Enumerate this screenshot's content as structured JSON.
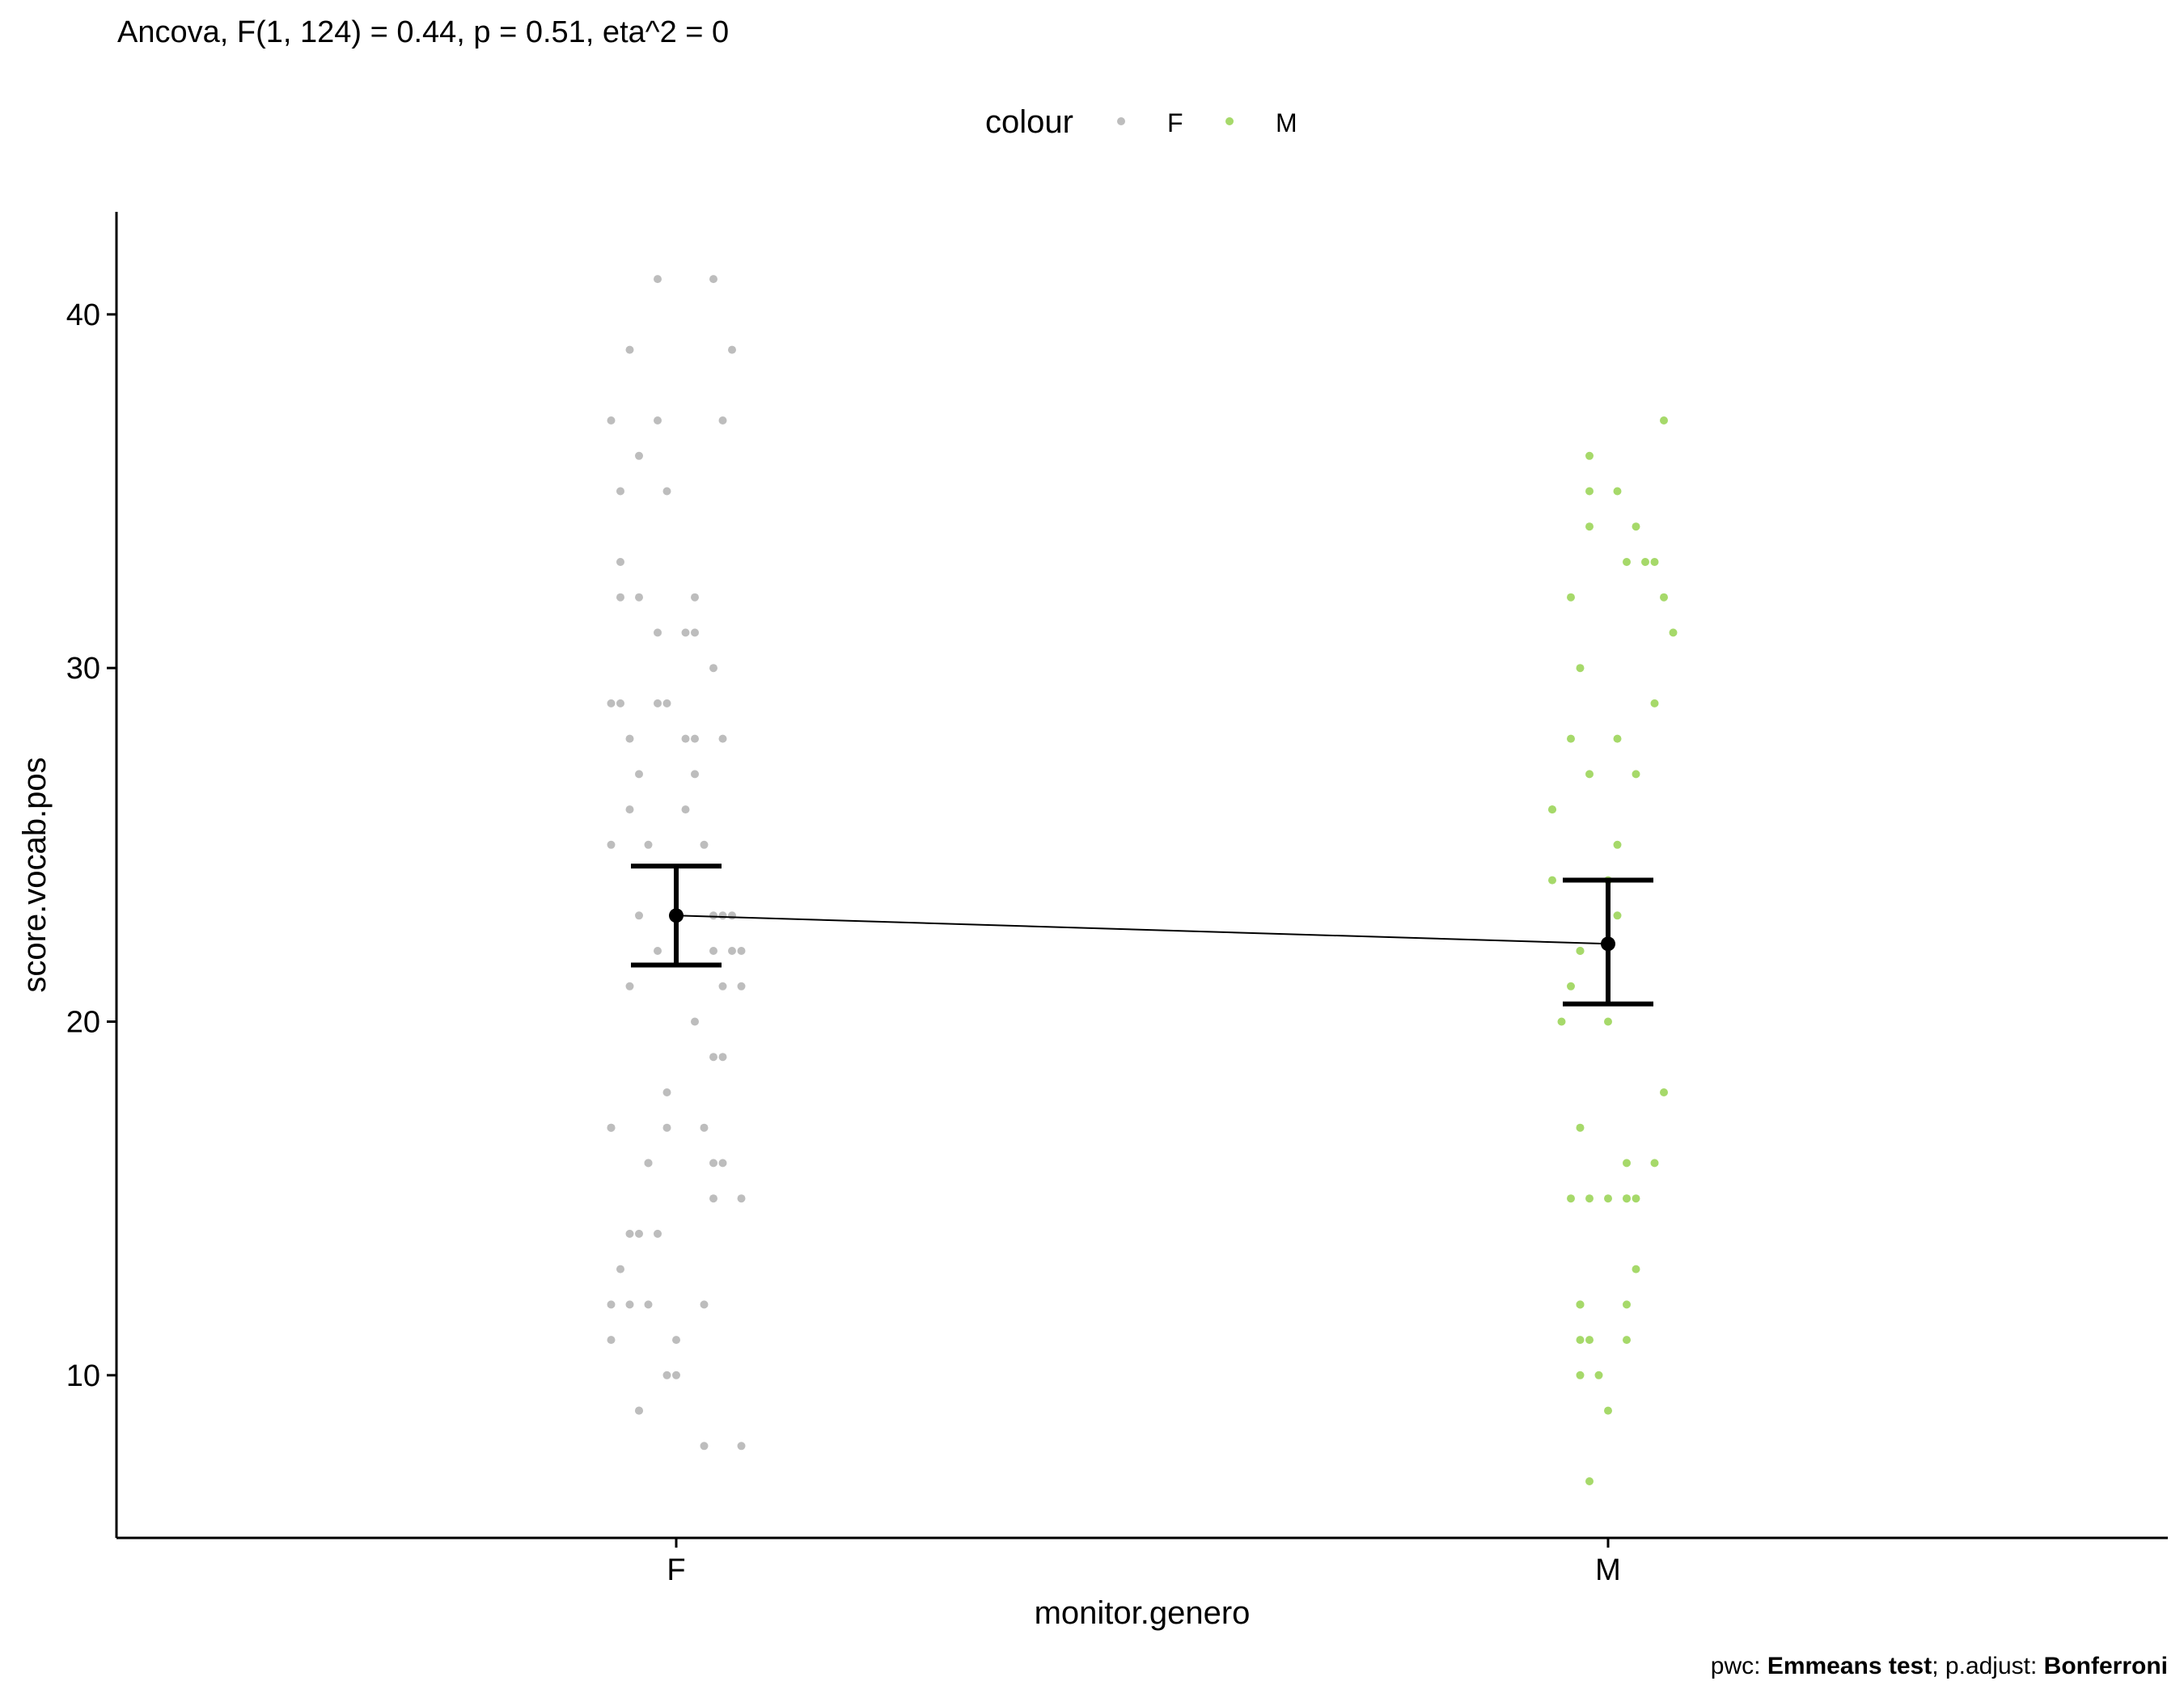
{
  "chart_data": {
    "type": "scatter",
    "title": "Ancova, F(1, 124) = 0.44, p = 0.51, eta^2 = 0",
    "caption_parts": [
      {
        "text": "pwc: ",
        "bold": false
      },
      {
        "text": "Emmeans test",
        "bold": true
      },
      {
        "text": "; p.adjust: ",
        "bold": false
      },
      {
        "text": "Bonferroni",
        "bold": true
      }
    ],
    "xlabel": "monitor.genero",
    "ylabel": "score.vocab.pos",
    "categories": [
      "F",
      "M"
    ],
    "ylim": [
      5.4,
      42.9
    ],
    "yticks": [
      10,
      20,
      30,
      40
    ],
    "grid": false,
    "legend": {
      "title": "colour",
      "position": "top",
      "entries": [
        {
          "label": "F",
          "color": "#BDBDBD"
        },
        {
          "label": "M",
          "color": "#A6D96A"
        }
      ]
    },
    "series": [
      {
        "name": "F",
        "color": "#BDBDBD",
        "points": [
          [
            -0.02,
            41
          ],
          [
            0.04,
            41
          ],
          [
            -0.05,
            39
          ],
          [
            0.06,
            39
          ],
          [
            -0.07,
            37
          ],
          [
            -0.02,
            37
          ],
          [
            0.05,
            37
          ],
          [
            -0.04,
            36
          ],
          [
            -0.06,
            35
          ],
          [
            -0.01,
            35
          ],
          [
            -0.06,
            33
          ],
          [
            -0.06,
            32
          ],
          [
            -0.04,
            32
          ],
          [
            0.02,
            32
          ],
          [
            -0.02,
            31
          ],
          [
            0.01,
            31
          ],
          [
            0.02,
            31
          ],
          [
            0.04,
            30
          ],
          [
            -0.07,
            29
          ],
          [
            -0.06,
            29
          ],
          [
            -0.02,
            29
          ],
          [
            -0.01,
            29
          ],
          [
            -0.05,
            28
          ],
          [
            0.01,
            28
          ],
          [
            0.02,
            28
          ],
          [
            0.05,
            28
          ],
          [
            -0.04,
            27
          ],
          [
            0.02,
            27
          ],
          [
            -0.05,
            26
          ],
          [
            0.01,
            26
          ],
          [
            -0.07,
            25
          ],
          [
            -0.03,
            25
          ],
          [
            0.03,
            25
          ],
          [
            -0.04,
            23
          ],
          [
            0.04,
            23
          ],
          [
            0.05,
            23
          ],
          [
            0.06,
            23
          ],
          [
            -0.02,
            22
          ],
          [
            0.04,
            22
          ],
          [
            0.06,
            22
          ],
          [
            0.07,
            22
          ],
          [
            -0.05,
            21
          ],
          [
            0.05,
            21
          ],
          [
            0.07,
            21
          ],
          [
            0.02,
            20
          ],
          [
            0.04,
            19
          ],
          [
            0.05,
            19
          ],
          [
            -0.01,
            18
          ],
          [
            -0.07,
            17
          ],
          [
            -0.07,
            17
          ],
          [
            -0.01,
            17
          ],
          [
            0.03,
            17
          ],
          [
            -0.03,
            16
          ],
          [
            -0.03,
            16
          ],
          [
            0.04,
            16
          ],
          [
            0.05,
            16
          ],
          [
            0.04,
            15
          ],
          [
            0.07,
            15
          ],
          [
            -0.05,
            14
          ],
          [
            -0.04,
            14
          ],
          [
            -0.02,
            14
          ],
          [
            -0.06,
            13
          ],
          [
            -0.07,
            12
          ],
          [
            -0.05,
            12
          ],
          [
            -0.03,
            12
          ],
          [
            0.03,
            12
          ],
          [
            0.0,
            11
          ],
          [
            -0.07,
            11
          ],
          [
            -0.01,
            10
          ],
          [
            0.0,
            10
          ],
          [
            -0.04,
            9
          ],
          [
            -0.04,
            9
          ],
          [
            0.03,
            8
          ],
          [
            0.07,
            8
          ]
        ],
        "mean": 23.0,
        "ci": [
          21.6,
          24.4
        ]
      },
      {
        "name": "M",
        "color": "#A6D96A",
        "points": [
          [
            0.06,
            37
          ],
          [
            -0.02,
            36
          ],
          [
            -0.02,
            35
          ],
          [
            0.01,
            35
          ],
          [
            0.03,
            34
          ],
          [
            -0.02,
            34
          ],
          [
            0.02,
            33
          ],
          [
            0.04,
            33
          ],
          [
            0.05,
            33
          ],
          [
            -0.04,
            32
          ],
          [
            0.06,
            32
          ],
          [
            0.07,
            31
          ],
          [
            -0.03,
            30
          ],
          [
            0.05,
            29
          ],
          [
            -0.04,
            28
          ],
          [
            0.01,
            28
          ],
          [
            -0.02,
            27
          ],
          [
            0.03,
            27
          ],
          [
            -0.06,
            26
          ],
          [
            -0.06,
            26
          ],
          [
            0.01,
            25
          ],
          [
            -0.06,
            24
          ],
          [
            0.0,
            24
          ],
          [
            0.01,
            23
          ],
          [
            -0.03,
            22
          ],
          [
            -0.03,
            22
          ],
          [
            -0.04,
            21
          ],
          [
            -0.05,
            20
          ],
          [
            0.0,
            20
          ],
          [
            0.06,
            18
          ],
          [
            -0.03,
            17
          ],
          [
            0.02,
            16
          ],
          [
            0.05,
            16
          ],
          [
            -0.04,
            15
          ],
          [
            -0.02,
            15
          ],
          [
            0.0,
            15
          ],
          [
            0.02,
            15
          ],
          [
            0.02,
            15
          ],
          [
            0.03,
            15
          ],
          [
            0.03,
            13
          ],
          [
            -0.03,
            12
          ],
          [
            -0.03,
            12
          ],
          [
            0.02,
            12
          ],
          [
            -0.03,
            11
          ],
          [
            -0.02,
            11
          ],
          [
            0.02,
            11
          ],
          [
            -0.03,
            10
          ],
          [
            -0.01,
            10
          ],
          [
            0.0,
            9
          ],
          [
            -0.02,
            7
          ]
        ],
        "mean": 22.2,
        "ci": [
          20.5,
          24.0
        ]
      }
    ]
  }
}
